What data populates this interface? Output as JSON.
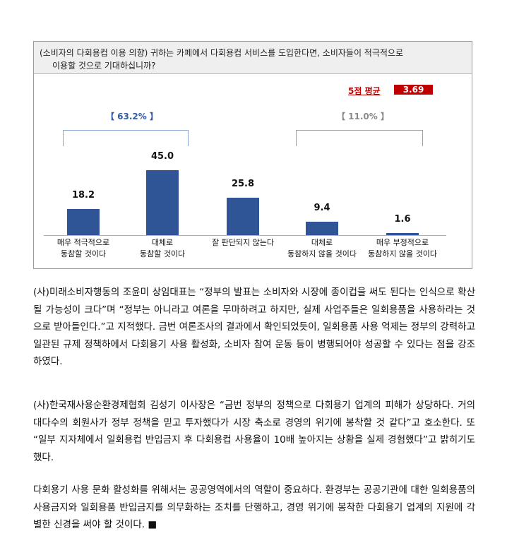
{
  "question": {
    "line1": "(소비자의 다회용컵 이용 의향) 귀하는 카페에서 다회용컵 서비스를 도입한다면, 소비자들이 적극적으로",
    "line2": "이용할 것으로 기대하십니까?"
  },
  "average": {
    "label": "5점 평균",
    "value": "3.69"
  },
  "groups": {
    "positive": "【 63.2% 】",
    "negative": "【 11.0% 】"
  },
  "chart_data": {
    "type": "bar",
    "categories": [
      [
        "매우 적극적으로",
        "동참할 것이다"
      ],
      [
        "대체로",
        "동참할 것이다"
      ],
      [
        "잘 판단되지 않는다"
      ],
      [
        "대체로",
        "동참하지 않을 것이다"
      ],
      [
        "매우 부정적으로",
        "동참하지 않을 것이다"
      ]
    ],
    "values": [
      18.2,
      45.0,
      25.8,
      9.4,
      1.6
    ],
    "value_labels": [
      "18.2",
      "45.0",
      "25.8",
      "9.4",
      "1.6"
    ],
    "ylim": [
      0,
      45.0
    ],
    "bar_color": "#2f5597",
    "grid": false
  },
  "paragraphs": [
    "(사)미래소비자행동의 조윤미 상임대표는 “정부의 발표는 소비자와 시장에 종이컵을 써도 된다는 인식으로 확산될 가능성이 크다”며 “정부는 아니라고 여론을 무마하려고 하지만, 실제 사업주들은 일회용품을 사용하라는 것으로 받아들인다.”고 지적했다. 금번 여론조사의 결과에서 확인되었듯이, 일회용품 사용 억제는 정부의 강력하고 일관된 규제 정책하에서 다회용기 사용 활성화, 소비자 참여 운동 등이 병행되어야 성공할 수 있다는 점을 강조하였다.",
    "(사)한국재사용순환경제협회 김성기 이사장은 “금번 정부의 정책으로 다회용기 업계의 피해가 상당하다. 거의 대다수의 회원사가 정부 정책을 믿고 투자했다가 시장 축소로 경영의 위기에 봉착할 것 같다”고 호소한다. 또 “일부 지자체에서 일회용컵 반입금지 후 다회용컵 사용율이 10배 높아지는 상황을 실제 경험했다”고 밝히기도 했다.",
    "다회용기 사용 문화 활성화를 위해서는 공공영역에서의 역할이 중요하다. 환경부는 공공기관에 대한 일회용품의 사용금지와 일회용품 반입금지를 의무화하는 조치를 단행하고, 경영 위기에 봉착한 다회용기 업계의 지원에 각별한 신경을 써야 할 것이다. ■"
  ]
}
